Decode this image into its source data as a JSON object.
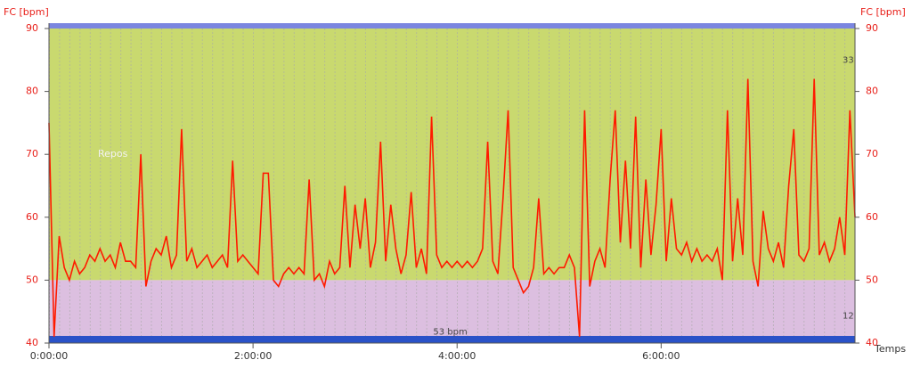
{
  "chart_data": {
    "type": "line",
    "y_label": "FC [bpm]",
    "y2_label": "FC [bpm]",
    "x_label": "Temps",
    "xlim": [
      0,
      28440
    ],
    "ylim": [
      40,
      90
    ],
    "xticks": [
      {
        "value": 0,
        "label": "0:00:00"
      },
      {
        "value": 7200,
        "label": "2:00:00"
      },
      {
        "value": 14400,
        "label": "4:00:00"
      },
      {
        "value": 21600,
        "label": "6:00:00"
      }
    ],
    "yticks": [
      40,
      50,
      60,
      70,
      80,
      90
    ],
    "zones": [
      {
        "name": "Repos",
        "from": 50,
        "to": 90,
        "color": "#c9d96f"
      },
      {
        "from": 40,
        "to": 50,
        "color": "#dcbfe0"
      }
    ],
    "annotations": [
      {
        "text": "53 bpm",
        "x": 14160,
        "y": 41.8
      },
      {
        "text": "33",
        "x": 28200,
        "y": 85
      },
      {
        "text": "12",
        "x": 28200,
        "y": 44.3
      }
    ],
    "series": [
      {
        "name": "FC",
        "color": "#ff1a00",
        "x": [
          0,
          180,
          360,
          540,
          720,
          900,
          1080,
          1260,
          1440,
          1620,
          1800,
          1980,
          2160,
          2340,
          2520,
          2700,
          2880,
          3060,
          3240,
          3420,
          3600,
          3780,
          3960,
          4140,
          4320,
          4500,
          4680,
          4860,
          5040,
          5220,
          5400,
          5580,
          5760,
          5940,
          6120,
          6300,
          6480,
          6660,
          6840,
          7020,
          7200,
          7380,
          7560,
          7740,
          7920,
          8100,
          8280,
          8460,
          8640,
          8820,
          9000,
          9180,
          9360,
          9540,
          9720,
          9900,
          10080,
          10260,
          10440,
          10620,
          10800,
          10980,
          11160,
          11340,
          11520,
          11700,
          11880,
          12060,
          12240,
          12420,
          12600,
          12780,
          12960,
          13140,
          13320,
          13500,
          13680,
          13860,
          14040,
          14220,
          14400,
          14580,
          14760,
          14940,
          15120,
          15300,
          15480,
          15660,
          15840,
          16020,
          16200,
          16380,
          16560,
          16740,
          16920,
          17100,
          17280,
          17460,
          17640,
          17820,
          18000,
          18180,
          18360,
          18540,
          18720,
          18900,
          19080,
          19260,
          19440,
          19620,
          19800,
          19980,
          20160,
          20340,
          20520,
          20700,
          20880,
          21060,
          21240,
          21420,
          21600,
          21780,
          21960,
          22140,
          22320,
          22500,
          22680,
          22860,
          23040,
          23220,
          23400,
          23580,
          23760,
          23940,
          24120,
          24300,
          24480,
          24660,
          24840,
          25020,
          25200,
          25380,
          25560,
          25740,
          25920,
          26100,
          26280,
          26460,
          26640,
          26820,
          27000,
          27180,
          27360,
          27540,
          27720,
          27900,
          28080,
          28260,
          28440
        ],
        "values": [
          75,
          41,
          57,
          52,
          50,
          53,
          51,
          52,
          54,
          53,
          55,
          53,
          54,
          52,
          56,
          53,
          53,
          52,
          70,
          49,
          53,
          55,
          54,
          57,
          52,
          54,
          74,
          53,
          55,
          52,
          53,
          54,
          52,
          53,
          54,
          52,
          69,
          53,
          54,
          53,
          52,
          51,
          67,
          67,
          50,
          49,
          51,
          52,
          51,
          52,
          51,
          66,
          50,
          51,
          49,
          53,
          51,
          52,
          65,
          52,
          62,
          55,
          63,
          52,
          56,
          72,
          53,
          62,
          55,
          51,
          54,
          64,
          52,
          55,
          51,
          76,
          54,
          52,
          53,
          52,
          53,
          52,
          53,
          52,
          53,
          55,
          72,
          53,
          51,
          63,
          77,
          52,
          50,
          48,
          49,
          52,
          63,
          51,
          52,
          51,
          52,
          52,
          54,
          52,
          41,
          77,
          49,
          53,
          55,
          52,
          66,
          77,
          56,
          69,
          55,
          76,
          52,
          66,
          54,
          62,
          74,
          53,
          63,
          55,
          54,
          56,
          53,
          55,
          53,
          54,
          53,
          55,
          50,
          77,
          53,
          63,
          54,
          82,
          53,
          49,
          61,
          55,
          53,
          56,
          52,
          65,
          74,
          54,
          53,
          55,
          82,
          54,
          56,
          53,
          55,
          60,
          54,
          77,
          60
        ]
      }
    ]
  }
}
